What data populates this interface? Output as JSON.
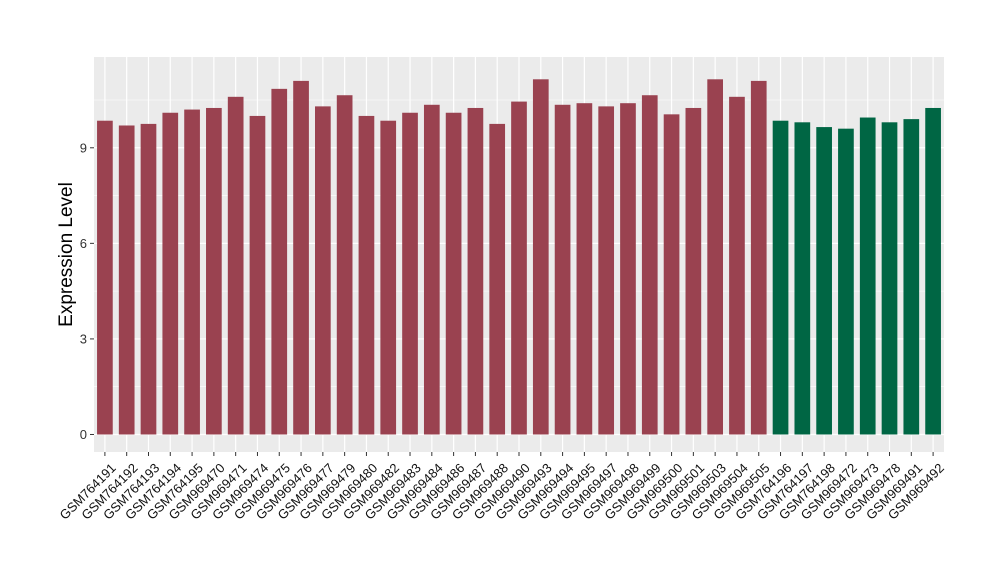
{
  "chart_data": {
    "type": "bar",
    "title": "",
    "xlabel": "",
    "ylabel": "Expression Level",
    "ylim": [
      -0.55,
      11.85
    ],
    "yticks": [
      0,
      3,
      6,
      9
    ],
    "grid": true,
    "legend": "none",
    "colors": {
      "group_a": "#9a4250",
      "group_b": "#006644",
      "panel": "#ebebeb",
      "grid": "#ffffff"
    },
    "categories": [
      "GSM764191",
      "GSM764192",
      "GSM764193",
      "GSM764194",
      "GSM764195",
      "GSM969470",
      "GSM969471",
      "GSM969474",
      "GSM969475",
      "GSM969476",
      "GSM969477",
      "GSM969479",
      "GSM969480",
      "GSM969482",
      "GSM969483",
      "GSM969484",
      "GSM969486",
      "GSM969487",
      "GSM969488",
      "GSM969490",
      "GSM969493",
      "GSM969494",
      "GSM969495",
      "GSM969497",
      "GSM969498",
      "GSM969499",
      "GSM969500",
      "GSM969501",
      "GSM969503",
      "GSM969504",
      "GSM969505",
      "GSM764196",
      "GSM764197",
      "GSM764198",
      "GSM969472",
      "GSM969473",
      "GSM969478",
      "GSM969491",
      "GSM969492"
    ],
    "values": [
      9.85,
      9.7,
      9.75,
      10.1,
      10.2,
      10.25,
      10.6,
      10.0,
      10.85,
      11.1,
      10.3,
      10.65,
      10.0,
      9.85,
      10.1,
      10.35,
      10.1,
      10.25,
      9.75,
      10.45,
      11.15,
      10.35,
      10.4,
      10.3,
      10.4,
      10.65,
      10.05,
      10.25,
      11.15,
      10.6,
      11.1,
      9.85,
      9.8,
      9.65,
      9.6,
      9.95,
      9.8,
      9.9,
      10.25
    ],
    "groups": [
      "a",
      "a",
      "a",
      "a",
      "a",
      "a",
      "a",
      "a",
      "a",
      "a",
      "a",
      "a",
      "a",
      "a",
      "a",
      "a",
      "a",
      "a",
      "a",
      "a",
      "a",
      "a",
      "a",
      "a",
      "a",
      "a",
      "a",
      "a",
      "a",
      "a",
      "a",
      "b",
      "b",
      "b",
      "b",
      "b",
      "b",
      "b",
      "b"
    ]
  }
}
